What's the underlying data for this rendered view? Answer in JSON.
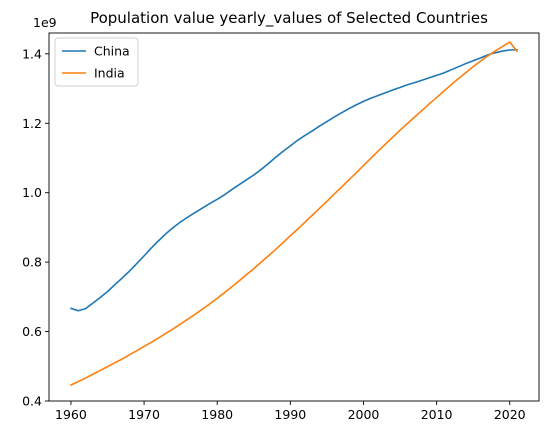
{
  "chart_data": {
    "type": "line",
    "title": "Population value yearly_values of Selected Countries",
    "xlabel": "",
    "ylabel": "",
    "y_scale_label": "1e9",
    "xlim": [
      1957,
      2024
    ],
    "ylim": [
      0.4,
      1.46
    ],
    "x_ticks": [
      1960,
      1970,
      1980,
      1990,
      2000,
      2010,
      2020
    ],
    "y_ticks": [
      0.4,
      0.6,
      0.8,
      1.0,
      1.2,
      1.4
    ],
    "grid": false,
    "legend_position": "upper-left",
    "x": [
      1960,
      1961,
      1962,
      1963,
      1964,
      1965,
      1966,
      1967,
      1968,
      1969,
      1970,
      1971,
      1972,
      1973,
      1974,
      1975,
      1976,
      1977,
      1978,
      1979,
      1980,
      1981,
      1982,
      1983,
      1984,
      1985,
      1986,
      1987,
      1988,
      1989,
      1990,
      1991,
      1992,
      1993,
      1994,
      1995,
      1996,
      1997,
      1998,
      1999,
      2000,
      2001,
      2002,
      2003,
      2004,
      2005,
      2006,
      2007,
      2008,
      2009,
      2010,
      2011,
      2012,
      2013,
      2014,
      2015,
      2016,
      2017,
      2018,
      2019,
      2020,
      2021
    ],
    "series": [
      {
        "name": "China",
        "color": "#1f77b4",
        "values": [
          0.667,
          0.66,
          0.666,
          0.682,
          0.698,
          0.715,
          0.735,
          0.754,
          0.774,
          0.796,
          0.818,
          0.841,
          0.862,
          0.882,
          0.9,
          0.916,
          0.93,
          0.943,
          0.956,
          0.969,
          0.981,
          0.994,
          1.009,
          1.023,
          1.037,
          1.051,
          1.067,
          1.084,
          1.102,
          1.119,
          1.135,
          1.151,
          1.165,
          1.178,
          1.192,
          1.205,
          1.218,
          1.23,
          1.242,
          1.253,
          1.263,
          1.272,
          1.28,
          1.288,
          1.296,
          1.303,
          1.311,
          1.317,
          1.324,
          1.331,
          1.338,
          1.345,
          1.354,
          1.363,
          1.372,
          1.38,
          1.388,
          1.397,
          1.403,
          1.408,
          1.411,
          1.412
        ]
      },
      {
        "name": "India",
        "color": "#ff7f0e",
        "values": [
          0.446,
          0.456,
          0.466,
          0.477,
          0.488,
          0.499,
          0.51,
          0.521,
          0.533,
          0.545,
          0.557,
          0.569,
          0.582,
          0.595,
          0.608,
          0.622,
          0.636,
          0.65,
          0.665,
          0.68,
          0.696,
          0.712,
          0.729,
          0.746,
          0.764,
          0.781,
          0.8,
          0.818,
          0.837,
          0.856,
          0.876,
          0.895,
          0.915,
          0.935,
          0.955,
          0.975,
          0.996,
          1.016,
          1.037,
          1.057,
          1.078,
          1.099,
          1.12,
          1.14,
          1.16,
          1.18,
          1.199,
          1.218,
          1.237,
          1.256,
          1.274,
          1.293,
          1.311,
          1.329,
          1.346,
          1.363,
          1.379,
          1.394,
          1.408,
          1.421,
          1.434,
          1.407
        ]
      }
    ]
  }
}
